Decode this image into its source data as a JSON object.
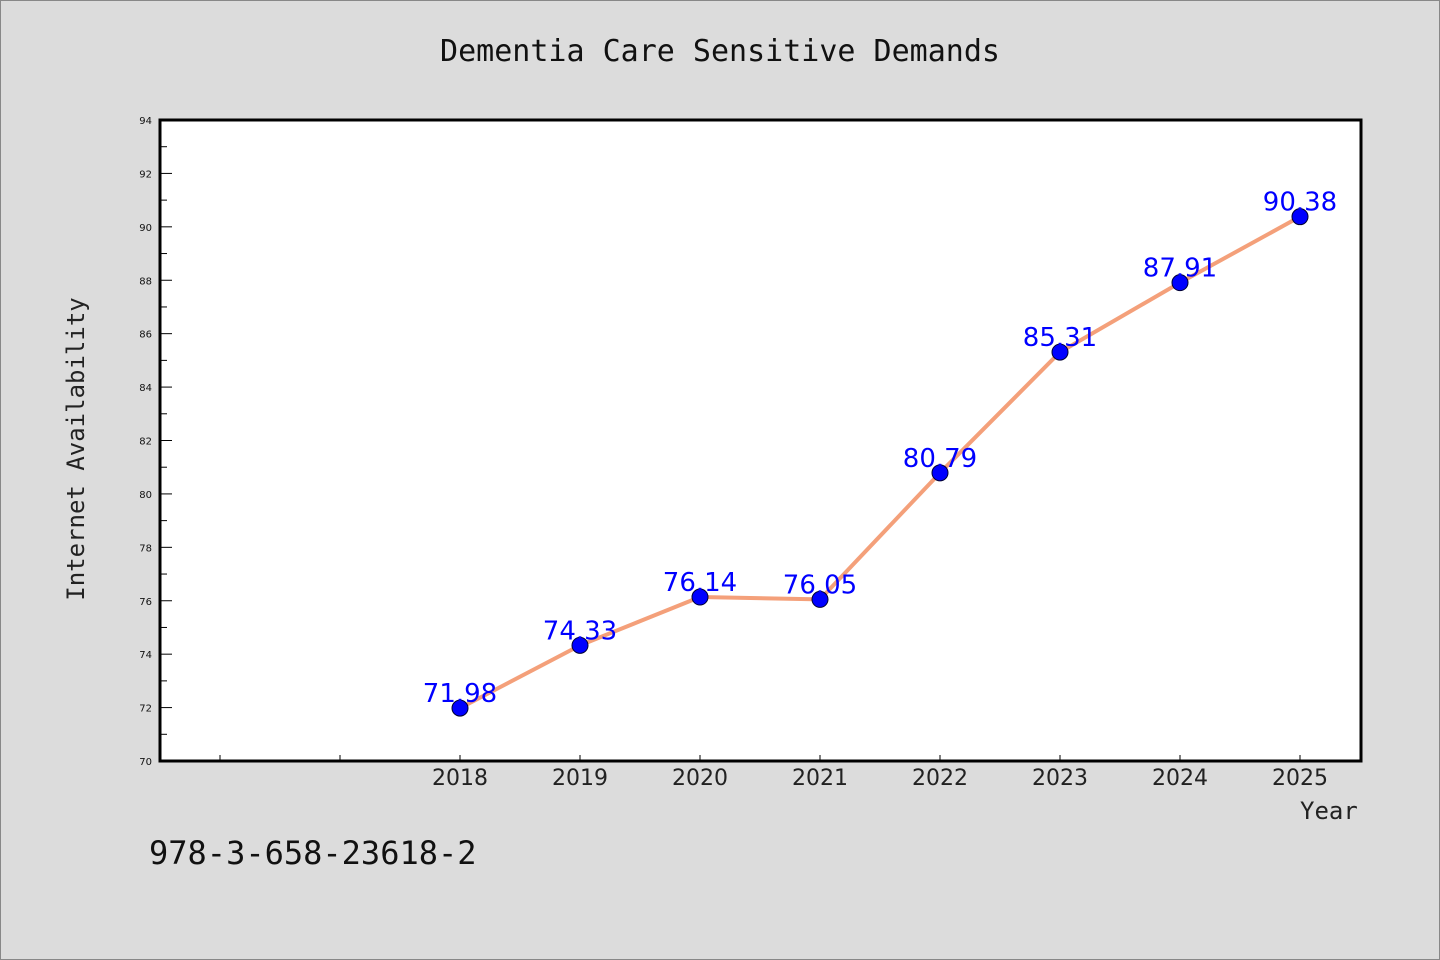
{
  "chart_data": {
    "type": "line",
    "title": "Dementia Care Sensitive Demands",
    "xlabel": "Year",
    "ylabel": "Internet Availability",
    "categories": [
      "2018",
      "2019",
      "2020",
      "2021",
      "2022",
      "2023",
      "2024",
      "2025"
    ],
    "series": [
      {
        "values": [
          71.98,
          74.33,
          76.14,
          76.05,
          80.79,
          85.31,
          87.91,
          90.38
        ]
      }
    ],
    "data_labels": [
      "71.98",
      "74.33",
      "76.14",
      "76.05",
      "80.79",
      "85.31",
      "87.91",
      "90.38"
    ],
    "ylim": [
      70,
      94
    ],
    "yticks": [
      "70",
      "72",
      "74",
      "76",
      "78",
      "80",
      "82",
      "84",
      "86",
      "88",
      "90",
      "92",
      "94"
    ],
    "grid": false,
    "colors": {
      "line": "#f4a07a",
      "marker": "#0000ff",
      "data_label": "#0000ff",
      "background": "#dcdcdc",
      "plot_area": "#ffffff"
    }
  },
  "footer_text": "978-3-658-23618-2"
}
